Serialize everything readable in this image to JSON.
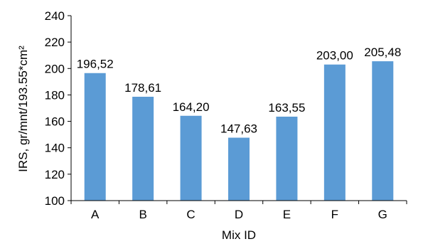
{
  "chart_data": {
    "type": "bar",
    "title": "",
    "xlabel": "Mix ID",
    "ylabel": "IRS,  gr/mnt/193.55*cm²",
    "categories": [
      "A",
      "B",
      "C",
      "D",
      "E",
      "F",
      "G"
    ],
    "values": [
      196.52,
      178.61,
      164.2,
      147.63,
      163.55,
      203.0,
      205.48
    ],
    "value_labels": [
      "196,52",
      "178,61",
      "164,20",
      "147,63",
      "163,55",
      "203,00",
      "205,48"
    ],
    "ylim": [
      100,
      240
    ],
    "yticks": [
      100,
      120,
      140,
      160,
      180,
      200,
      220,
      240
    ],
    "grid": false,
    "legend": "none",
    "bar_color": "#5B9BD5",
    "axis_color": "#000000"
  }
}
